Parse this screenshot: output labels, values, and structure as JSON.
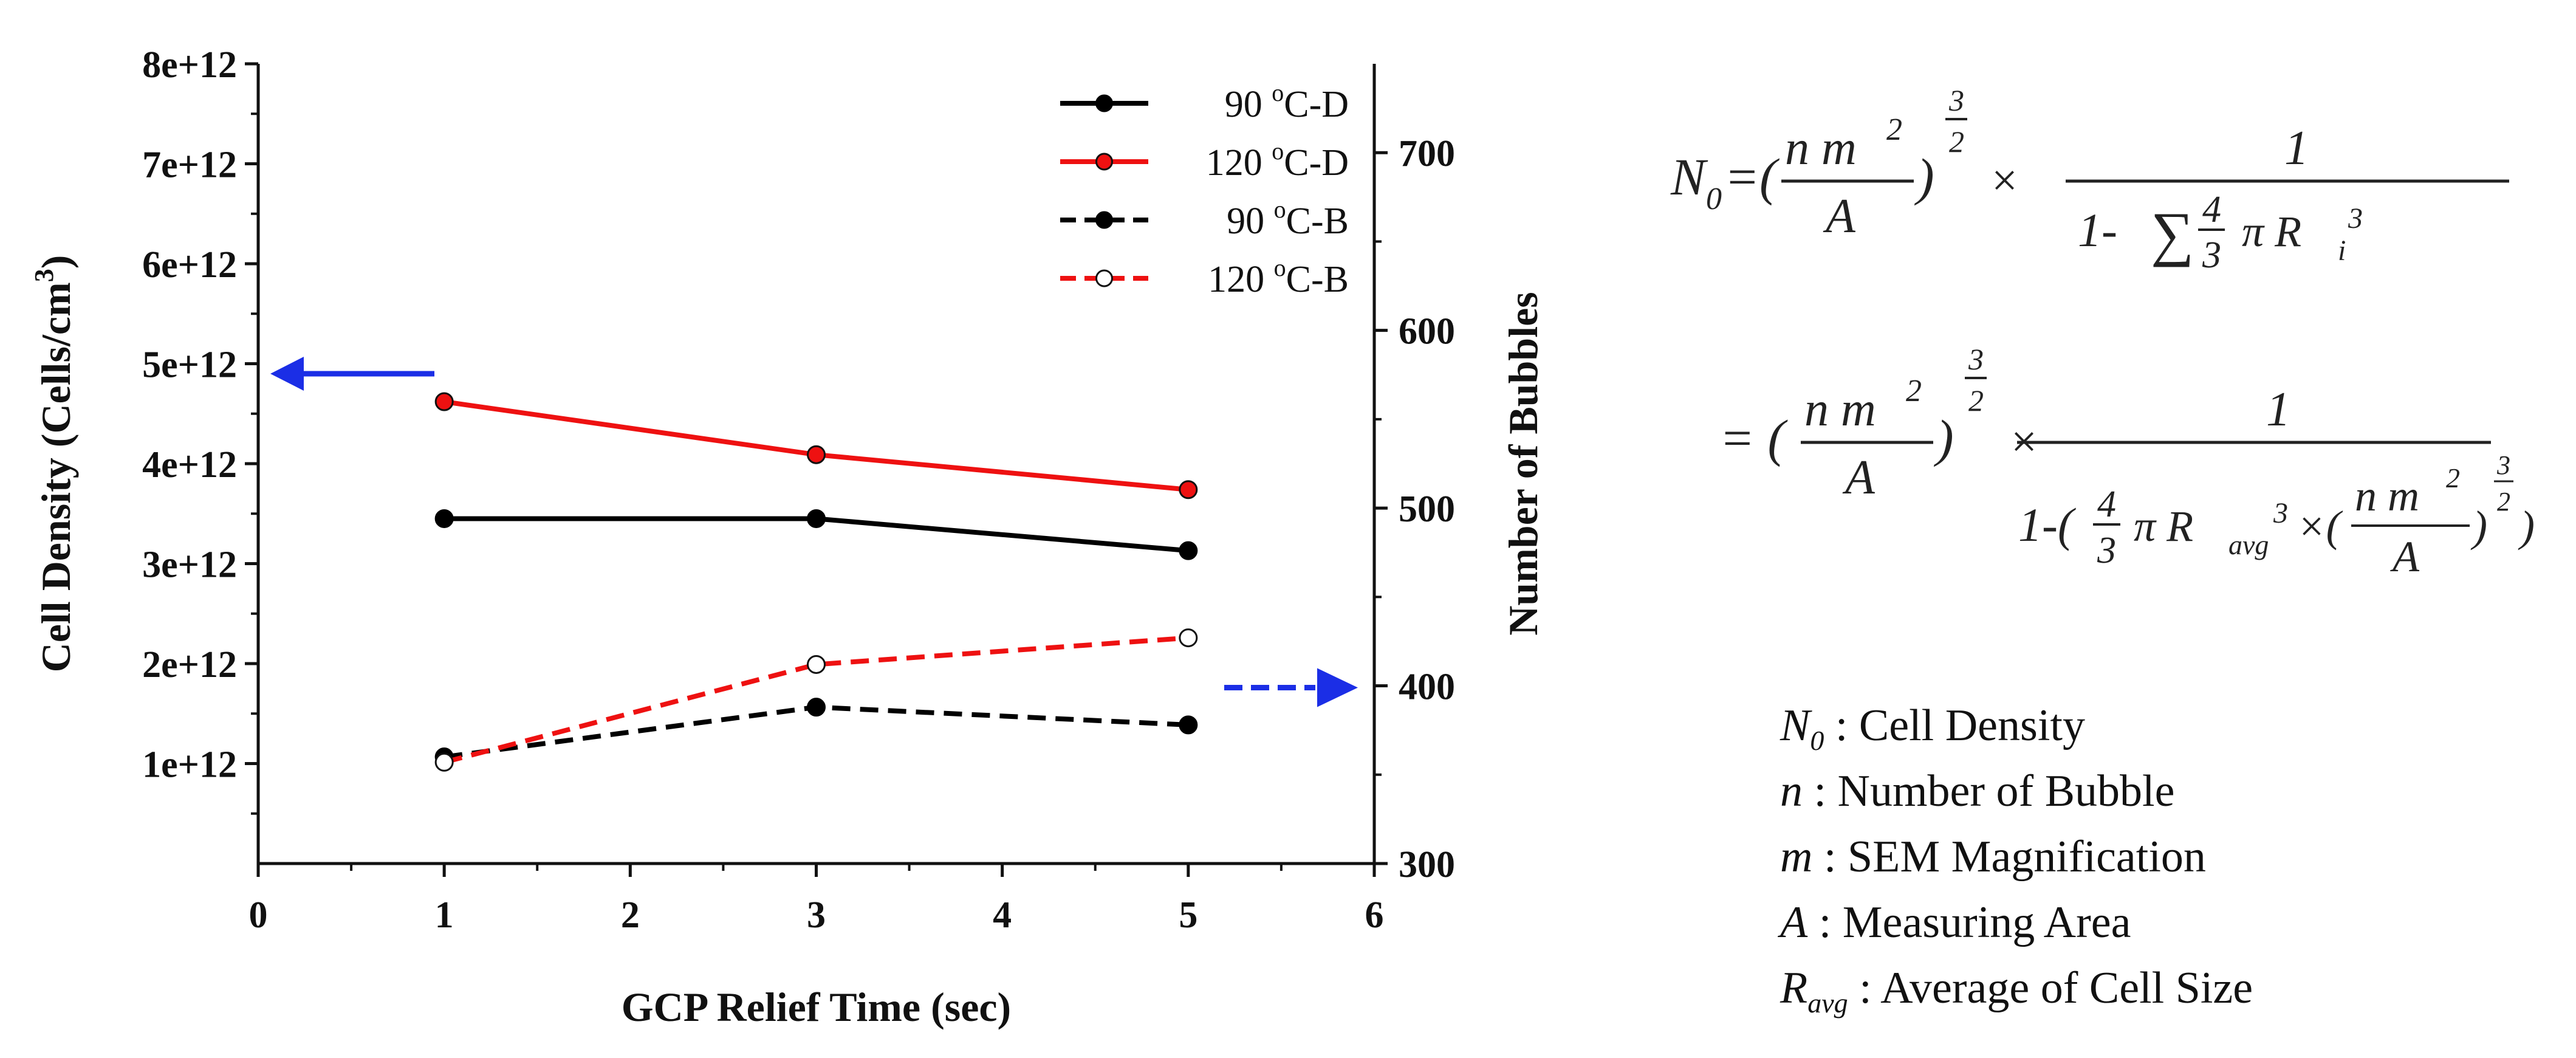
{
  "chart_data": {
    "type": "line",
    "xlabel": "GCP Relief Time (sec)",
    "ylabel_left": "Cell Density (Cells/cm³)",
    "ylabel_left_parts": [
      "Cell Density (Cells/cm",
      "3",
      ")"
    ],
    "ylabel_right": "Number of Bubbles",
    "xlim": [
      0,
      6
    ],
    "ylim_left": [
      0,
      8000000000000.0
    ],
    "ylim_right": [
      300,
      750
    ],
    "x_ticks": [
      "0",
      "1",
      "2",
      "3",
      "4",
      "5",
      "6"
    ],
    "y_left_ticks": [
      "1e+12",
      "2e+12",
      "3e+12",
      "4e+12",
      "5e+12",
      "6e+12",
      "7e+12",
      "8e+12"
    ],
    "y_right_ticks": [
      "300",
      "400",
      "500",
      "600",
      "700"
    ],
    "series": [
      {
        "name": "90 °C-D",
        "label_parts": [
          "90 ",
          "o",
          "C-D"
        ],
        "axis": "left",
        "color": "#000000",
        "dash": false,
        "marker": "filled",
        "x": [
          1,
          3,
          5
        ],
        "y": [
          3450000000000.0,
          3450000000000.0,
          3130000000000.0
        ]
      },
      {
        "name": "120 °C-D",
        "label_parts": [
          "120 ",
          "o",
          "C-D"
        ],
        "axis": "left",
        "color": "#ee1111",
        "dash": false,
        "marker": "filled-black-edge",
        "x": [
          1,
          3,
          5
        ],
        "y": [
          4620000000000.0,
          4090000000000.0,
          3740000000000.0
        ]
      },
      {
        "name": "90 °C-B",
        "label_parts": [
          "90 ",
          "o",
          "C-B"
        ],
        "axis": "right",
        "color": "#000000",
        "dash": true,
        "marker": "filled",
        "x": [
          1,
          3,
          5
        ],
        "y": [
          360,
          388,
          378
        ]
      },
      {
        "name": "120 °C-B",
        "label_parts": [
          "120 ",
          "o",
          "C-B"
        ],
        "axis": "right",
        "color": "#ee1111",
        "dash": true,
        "marker": "open",
        "x": [
          1,
          3,
          5
        ],
        "y": [
          357,
          412,
          427
        ]
      }
    ],
    "annotations": [
      {
        "type": "arrow",
        "points_to": "left-axis",
        "color": "#1b2ee6",
        "dash": false
      },
      {
        "type": "arrow",
        "points_to": "right-axis",
        "color": "#1b2ee6",
        "dash": true
      }
    ],
    "legend_position": "top-right"
  },
  "formula": {
    "n0_symbol": "N",
    "n0_sub": "0",
    "eq": "=(",
    "eq2": "= (",
    "frac_num": "n m",
    "frac_sup": "2",
    "frac_den": "A",
    "rparen": ")",
    "exp_num": "3",
    "exp_den": "2",
    "times": "×",
    "one": "1",
    "denom1_a": "1-",
    "sum": "∑",
    "four": "4",
    "three": "3",
    "pi_r": "π R",
    "ri_sub": "i",
    "ri_sup": "3",
    "denom2_a": "1-(",
    "ravg_sub": "avg",
    "ravg_sup": "3",
    "times2": "×(",
    "close": ")"
  },
  "definitions": [
    {
      "sym": "N",
      "sub": "0",
      "text": " : Cell Density"
    },
    {
      "sym": "n",
      "sub": "",
      "text": " : Number of Bubble"
    },
    {
      "sym": "m",
      "sub": "",
      "text": " : SEM Magnification"
    },
    {
      "sym": "A",
      "sub": "",
      "text": " : Measuring Area"
    },
    {
      "sym": "R",
      "sub": "avg",
      "text": " : Average of Cell Size"
    }
  ]
}
